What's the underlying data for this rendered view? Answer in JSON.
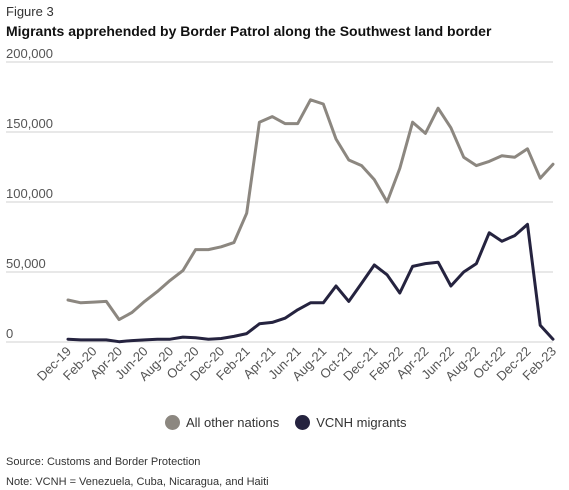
{
  "figure_label": "Figure 3",
  "title": "Migrants apprehended by Border Patrol along the Southwest land border",
  "source": "Source: Customs and Border Protection",
  "note": "Note: VCNH = Venezuela, Cuba, Nicaragua, and Haiti",
  "colors": {
    "all_other": "#8c8780",
    "vcnh": "#25233f",
    "gridline": "#d0d0d0"
  },
  "chart_data": {
    "type": "line",
    "title": "Migrants apprehended by Border Patrol along the Southwest land border",
    "xlabel": "",
    "ylabel": "",
    "ylim": [
      0,
      200000
    ],
    "yticks": [
      0,
      50000,
      100000,
      150000,
      200000
    ],
    "ytick_labels": [
      "0",
      "50,000",
      "100,000",
      "150,000",
      "200,000"
    ],
    "grid": true,
    "legend_position": "bottom",
    "x": [
      "Dec-19",
      "Jan-20",
      "Feb-20",
      "Mar-20",
      "Apr-20",
      "May-20",
      "Jun-20",
      "Jul-20",
      "Aug-20",
      "Sep-20",
      "Oct-20",
      "Nov-20",
      "Dec-20",
      "Jan-21",
      "Feb-21",
      "Mar-21",
      "Apr-21",
      "May-21",
      "Jun-21",
      "Jul-21",
      "Aug-21",
      "Sep-21",
      "Oct-21",
      "Nov-21",
      "Dec-21",
      "Jan-22",
      "Feb-22",
      "Mar-22",
      "Apr-22",
      "May-22",
      "Jun-22",
      "Jul-22",
      "Aug-22",
      "Sep-22",
      "Oct-22",
      "Nov-22",
      "Dec-22",
      "Jan-23",
      "Feb-23"
    ],
    "xtick_labels": [
      "Dec-19",
      "Feb-20",
      "Apr-20",
      "Jun-20",
      "Aug-20",
      "Oct-20",
      "Dec-20",
      "Feb-21",
      "Apr-21",
      "Jun-21",
      "Aug-21",
      "Oct-21",
      "Dec-21",
      "Feb-22",
      "Apr-22",
      "Jun-22",
      "Aug-22",
      "Oct-22",
      "Dec-22",
      "Feb-23"
    ],
    "series": [
      {
        "name": "All other nations",
        "values": [
          30000,
          28000,
          28500,
          29000,
          16000,
          21000,
          29000,
          36000,
          44000,
          51000,
          66000,
          66000,
          68000,
          71000,
          92000,
          157000,
          161000,
          156000,
          156000,
          173000,
          170000,
          145000,
          130000,
          126000,
          116000,
          100000,
          124000,
          157000,
          149000,
          167000,
          153000,
          132000,
          126000,
          129000,
          133000,
          132000,
          138000,
          117000,
          127000
        ]
      },
      {
        "name": "VCNH migrants",
        "values": [
          2000,
          1500,
          1500,
          1500,
          200,
          1000,
          1500,
          2000,
          2000,
          3500,
          3000,
          2000,
          2500,
          4000,
          6000,
          13000,
          14000,
          17000,
          23000,
          28000,
          28000,
          40000,
          29000,
          42000,
          55000,
          48000,
          35000,
          54000,
          56000,
          57000,
          40000,
          50000,
          56000,
          78000,
          72000,
          76000,
          84000,
          12000,
          2000
        ]
      }
    ]
  }
}
